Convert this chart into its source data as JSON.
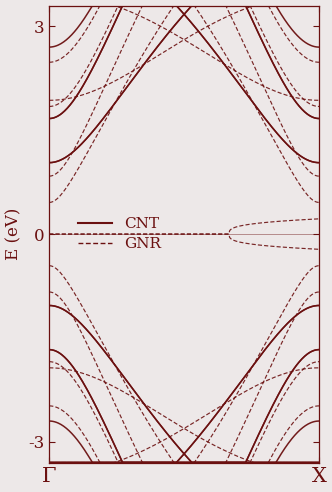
{
  "color": "#6B1010",
  "bg_color": "#EDE8E8",
  "ylim": [
    -3.3,
    3.3
  ],
  "yticks": [
    -3,
    0,
    3
  ],
  "xlabel_left": "Γ",
  "xlabel_right": "X",
  "ylabel": "E (eV)",
  "legend_CNT": "CNT",
  "legend_GNR": "GNR",
  "figsize": [
    3.32,
    4.92
  ],
  "dpi": 100,
  "t": 2.7,
  "N_cnt": 5,
  "N_gnr": 10
}
